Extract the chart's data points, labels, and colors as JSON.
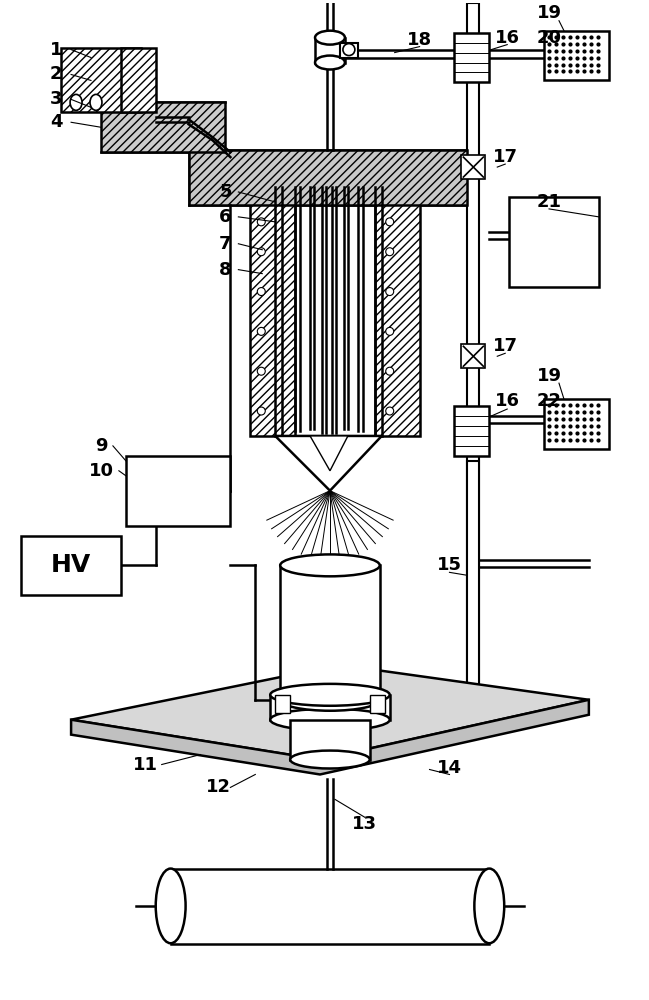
{
  "bg_color": "#ffffff",
  "lw": 1.3,
  "lw2": 1.8,
  "label_fs": 13,
  "label_fw": "bold"
}
